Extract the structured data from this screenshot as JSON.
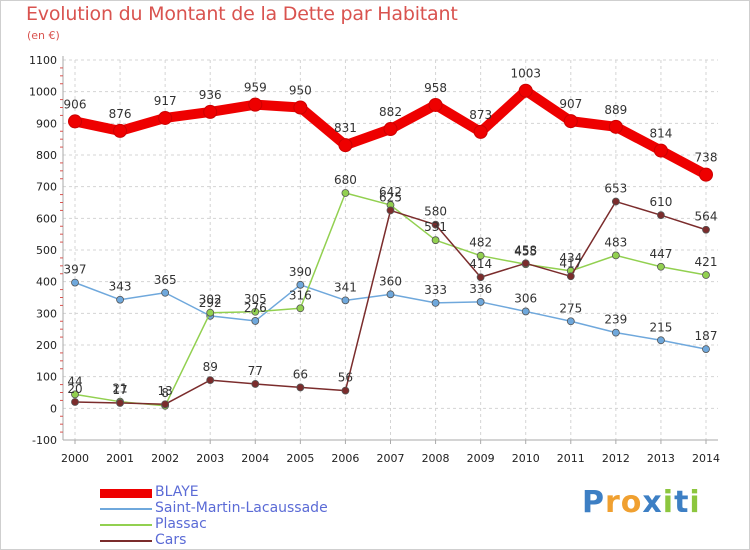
{
  "header": {
    "title": "Evolution du Montant de la Dette par Habitant",
    "subtitle": "(en €)"
  },
  "chart_data": {
    "type": "line",
    "title": "Evolution du Montant de la Dette par Habitant",
    "subtitle": "(en €)",
    "x": [
      "2000",
      "2001",
      "2002",
      "2003",
      "2004",
      "2005",
      "2006",
      "2007",
      "2008",
      "2009",
      "2010",
      "2011",
      "2012",
      "2013",
      "2014"
    ],
    "ylim": [
      -100,
      1100
    ],
    "yticks": [
      -100,
      0,
      100,
      200,
      300,
      400,
      500,
      600,
      700,
      800,
      900,
      1000,
      1100
    ],
    "grid": true,
    "legend_position": "bottom-left",
    "series": [
      {
        "name": "BLAYE",
        "color": "#ee0000",
        "values": [
          906,
          876,
          917,
          936,
          959,
          950,
          831,
          882,
          958,
          873,
          1003,
          907,
          889,
          814,
          738
        ]
      },
      {
        "name": "Saint-Martin-Lacaussade",
        "color": "#6fa8dc",
        "values": [
          397,
          343,
          365,
          292,
          276,
          390,
          341,
          360,
          333,
          336,
          306,
          275,
          239,
          215,
          187
        ]
      },
      {
        "name": "Plassac",
        "color": "#92d050",
        "values": [
          44,
          21,
          8,
          302,
          305,
          316,
          680,
          642,
          531,
          482,
          455,
          434,
          483,
          447,
          421
        ]
      },
      {
        "name": "Cars",
        "color": "#7b2c2c",
        "values": [
          20,
          17,
          13,
          89,
          77,
          66,
          56,
          625,
          580,
          414,
          458,
          417,
          653,
          610,
          564
        ]
      }
    ]
  },
  "brand": {
    "letters": [
      "P",
      "r",
      "o",
      "x",
      "i",
      "t",
      "i"
    ],
    "colors": [
      "#3d7fc4",
      "#f0a030",
      "#f0a030",
      "#3d7fc4",
      "#8cc63e",
      "#3d7fc4",
      "#8cc63e"
    ]
  }
}
